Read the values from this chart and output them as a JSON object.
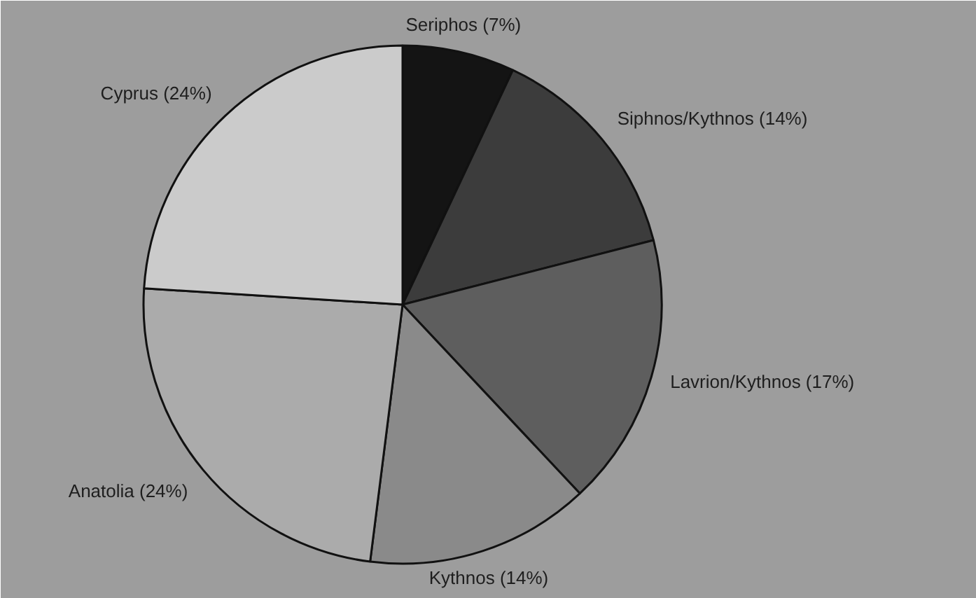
{
  "chart_data": {
    "type": "pie",
    "categories": [
      "Seriphos",
      "Siphnos/Kythnos",
      "Lavrion/Kythnos",
      "Kythnos",
      "Anatolia",
      "Cyprus"
    ],
    "values": [
      7,
      14,
      17,
      14,
      24,
      24
    ],
    "value_labels": [
      "(7%)",
      "(14%)",
      "(17%)",
      "(14%)",
      "(24%)",
      "(24%)"
    ],
    "colors": [
      "#141414",
      "#3c3c3c",
      "#5e5e5e",
      "#8a8a8a",
      "#ababab",
      "#cbcbcb"
    ],
    "legend": false
  }
}
